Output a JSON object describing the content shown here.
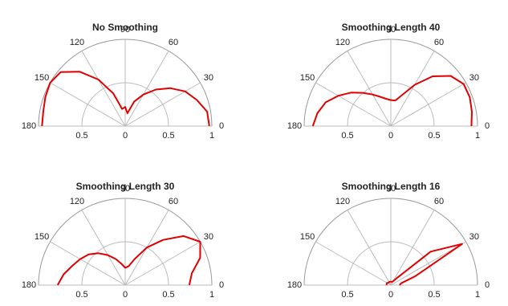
{
  "chart_data": [
    {
      "type": "polar",
      "title": "No Smoothing",
      "color": "#e00000",
      "rlim": [
        0,
        1
      ],
      "rticks": [
        0,
        0.5,
        1
      ],
      "rticks_mirror": [
        0.5
      ],
      "thetaticks": [
        0,
        30,
        60,
        90,
        120,
        150,
        180
      ],
      "theta": [
        0,
        10,
        20,
        30,
        40,
        50,
        60,
        70,
        80,
        90,
        100,
        110,
        120,
        130,
        140,
        150,
        160,
        170,
        180
      ],
      "values": [
        0.97,
        0.96,
        0.88,
        0.8,
        0.68,
        0.55,
        0.42,
        0.3,
        0.15,
        0.22,
        0.2,
        0.4,
        0.62,
        0.82,
        0.97,
        1.0,
        0.98,
        0.96,
        0.96
      ]
    },
    {
      "type": "polar",
      "title": "Smoothing Length 40",
      "color": "#e00000",
      "rlim": [
        0,
        1
      ],
      "rticks": [
        0,
        0.5,
        1
      ],
      "rticks_mirror": [
        0.5
      ],
      "thetaticks": [
        0,
        30,
        60,
        90,
        120,
        150,
        180
      ],
      "theta": [
        0,
        10,
        20,
        30,
        40,
        50,
        60,
        70,
        80,
        90,
        100,
        110,
        120,
        130,
        140,
        150,
        160,
        170,
        180
      ],
      "values": [
        0.93,
        0.95,
        0.97,
        0.97,
        0.9,
        0.75,
        0.55,
        0.38,
        0.3,
        0.3,
        0.32,
        0.36,
        0.42,
        0.5,
        0.6,
        0.7,
        0.8,
        0.86,
        0.9
      ]
    },
    {
      "type": "polar",
      "title": "Smoothing Length 30",
      "color": "#e00000",
      "rlim": [
        0,
        1
      ],
      "rticks": [
        0,
        0.5,
        1
      ],
      "rticks_mirror": [
        0.5
      ],
      "thetaticks": [
        0,
        30,
        60,
        90,
        120,
        150,
        180
      ],
      "theta": [
        0,
        10,
        20,
        30,
        40,
        50,
        60,
        70,
        80,
        90,
        100,
        110,
        120,
        130,
        140,
        150,
        160,
        170,
        180
      ],
      "values": [
        0.74,
        0.78,
        0.92,
        1.0,
        0.88,
        0.68,
        0.5,
        0.32,
        0.22,
        0.2,
        0.25,
        0.32,
        0.4,
        0.48,
        0.55,
        0.6,
        0.65,
        0.72,
        0.78
      ]
    },
    {
      "type": "polar",
      "title": "Smoothing Length 16",
      "color": "#e00000",
      "rlim": [
        0,
        1
      ],
      "rticks": [
        0,
        0.5,
        1
      ],
      "rticks_mirror": [
        0.5
      ],
      "thetaticks": [
        0,
        30,
        60,
        90,
        120,
        150,
        180
      ],
      "theta": [
        0,
        10,
        20,
        30,
        40,
        50,
        60,
        70,
        80,
        90,
        100,
        110,
        120,
        130,
        140,
        150,
        160,
        170,
        180
      ],
      "values": [
        0.1,
        0.12,
        0.3,
        0.95,
        0.6,
        0.1,
        0.05,
        0.04,
        0.04,
        0.04,
        0.04,
        0.04,
        0.04,
        0.04,
        0.04,
        0.05,
        0.05,
        0.05,
        0.05
      ]
    }
  ]
}
